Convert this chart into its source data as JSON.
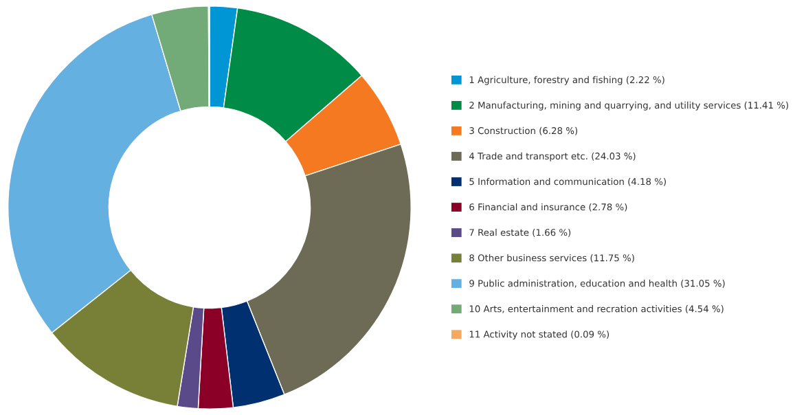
{
  "chart_data": {
    "type": "donut",
    "categories": [
      "1 Agriculture, forestry and fishing (2.22 %)",
      "2 Manufacturing, mining and quarrying, and utility services (11.41 %)",
      "3 Construction (6.28 %)",
      "4 Trade and transport etc. (24.03 %)",
      "5 Information and communication (4.18 %)",
      "6 Financial and insurance (2.78 %)",
      "7 Real estate (1.66 %)",
      "8 Other business services (11.75 %)",
      "9 Public administration, education and health (31.05 %)",
      "10 Arts, entertainment and recration activities (4.54 %)",
      "11 Activity not stated (0.09 %)"
    ],
    "values": [
      2.22,
      11.41,
      6.28,
      24.03,
      4.18,
      2.78,
      1.66,
      11.75,
      31.05,
      4.54,
      0.09
    ],
    "colors": [
      "#0096d6",
      "#008c46",
      "#f47920",
      "#6d6a55",
      "#003070",
      "#8a0026",
      "#5a4a8a",
      "#788038",
      "#64b0e0",
      "#72aa78",
      "#f5a860"
    ],
    "legend": "right"
  }
}
